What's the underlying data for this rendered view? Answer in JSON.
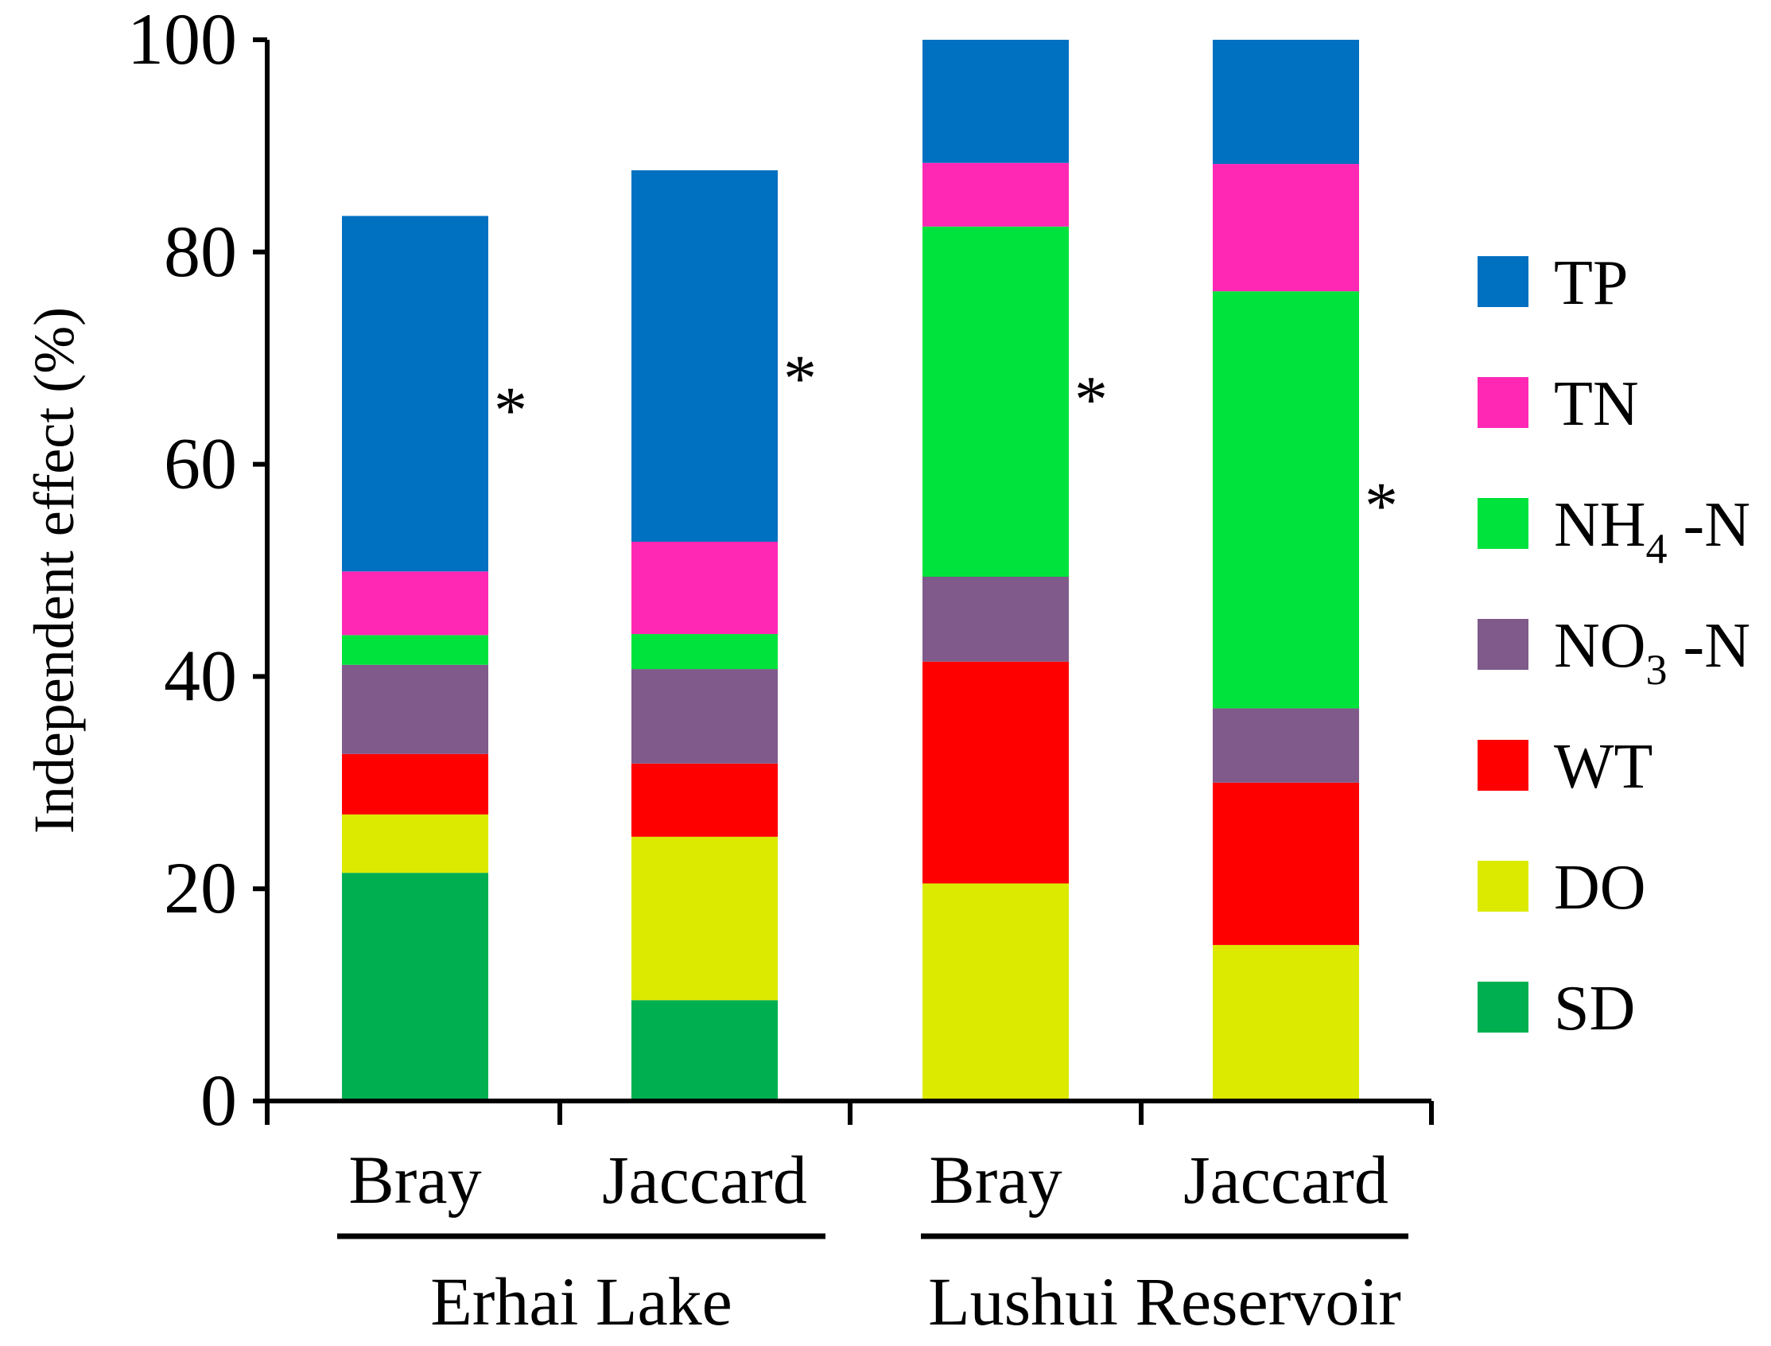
{
  "chart_data": {
    "type": "bar",
    "stacked": true,
    "title": "",
    "xlabel": "",
    "ylabel": "Independent effect (%)",
    "ylim": [
      0,
      100
    ],
    "yticks": [
      0,
      20,
      40,
      60,
      80,
      100
    ],
    "grid": false,
    "legend_position": "right",
    "categories": [
      "Bray",
      "Jaccard",
      "Bray",
      "Jaccard"
    ],
    "groups": [
      {
        "label": "Erhai Lake",
        "categories": [
          0,
          1
        ]
      },
      {
        "label": "Lushui Reservoir",
        "categories": [
          2,
          3
        ]
      }
    ],
    "series": [
      {
        "name": "SD",
        "label_main": "SD",
        "label_sub": "",
        "label_tail": "",
        "color": "#00b050",
        "values": [
          21.5,
          9.5,
          0,
          0
        ]
      },
      {
        "name": "DO",
        "label_main": "DO",
        "label_sub": "",
        "label_tail": "",
        "color": "#dcea00",
        "values": [
          5.5,
          15.4,
          20.5,
          14.7
        ]
      },
      {
        "name": "WT",
        "label_main": "WT",
        "label_sub": "",
        "label_tail": "",
        "color": "#ff0000",
        "values": [
          5.7,
          6.9,
          20.9,
          15.3
        ]
      },
      {
        "name": "NO3-N",
        "label_main": "NO",
        "label_sub": "3",
        "label_tail": " -N",
        "color": "#7f5a8a",
        "values": [
          8.4,
          8.9,
          8.0,
          7.0
        ]
      },
      {
        "name": "NH4-N",
        "label_main": "NH",
        "label_sub": "4",
        "label_tail": " -N",
        "color": "#00e33c",
        "values": [
          2.8,
          3.3,
          33.0,
          39.3
        ]
      },
      {
        "name": "TN",
        "label_main": "TN",
        "label_sub": "",
        "label_tail": "",
        "color": "#ff28b5",
        "values": [
          6.0,
          8.7,
          6.0,
          12.0
        ]
      },
      {
        "name": "TP",
        "label_main": "TP",
        "label_sub": "",
        "label_tail": "",
        "color": "#0070c0",
        "values": [
          33.5,
          35.0,
          11.6,
          11.7
        ]
      }
    ],
    "annotations": [
      {
        "text": "*",
        "category": 0,
        "y": 66
      },
      {
        "text": "*",
        "category": 1,
        "y": 69
      },
      {
        "text": "*",
        "category": 2,
        "y": 67
      },
      {
        "text": "*",
        "category": 3,
        "y": 57
      }
    ]
  }
}
